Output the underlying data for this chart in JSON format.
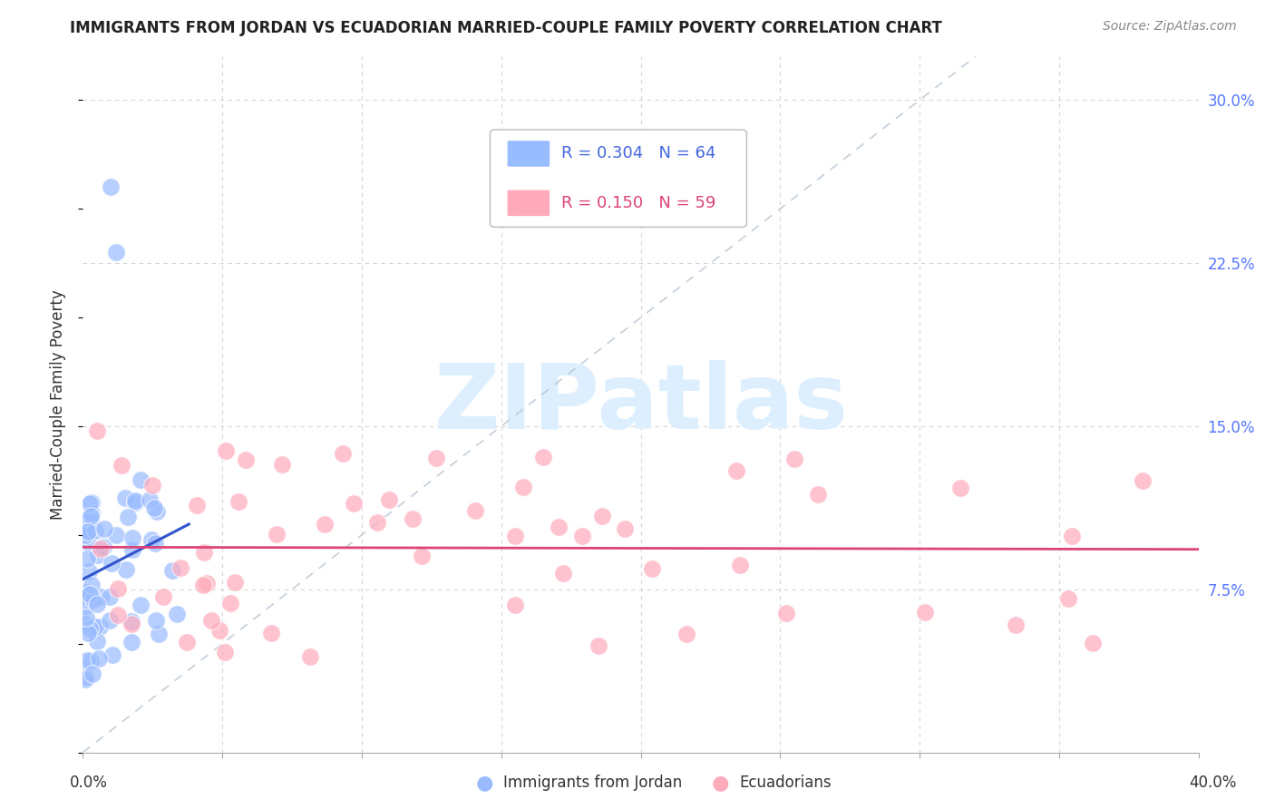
{
  "title": "IMMIGRANTS FROM JORDAN VS ECUADORIAN MARRIED-COUPLE FAMILY POVERTY CORRELATION CHART",
  "source": "Source: ZipAtlas.com",
  "ylabel": "Married-Couple Family Poverty",
  "xlim": [
    0.0,
    0.4
  ],
  "ylim": [
    0.0,
    0.32
  ],
  "blue_color": "#99bbff",
  "blue_edge_color": "#7799ee",
  "pink_color": "#ffaabb",
  "pink_edge_color": "#ee8899",
  "blue_line_color": "#3355cc",
  "pink_line_color": "#dd4477",
  "blue_R": 0.304,
  "blue_N": 64,
  "pink_R": 0.15,
  "pink_N": 59,
  "right_ytick_labels": [
    "7.5%",
    "15.0%",
    "22.5%",
    "30.0%"
  ],
  "right_ytick_vals": [
    0.075,
    0.15,
    0.225,
    0.3
  ],
  "watermark": "ZIPatlas",
  "watermark_color": "#ddeeff",
  "background_color": "#ffffff",
  "grid_color": "#cccccc",
  "diag_color": "#aabbcc"
}
